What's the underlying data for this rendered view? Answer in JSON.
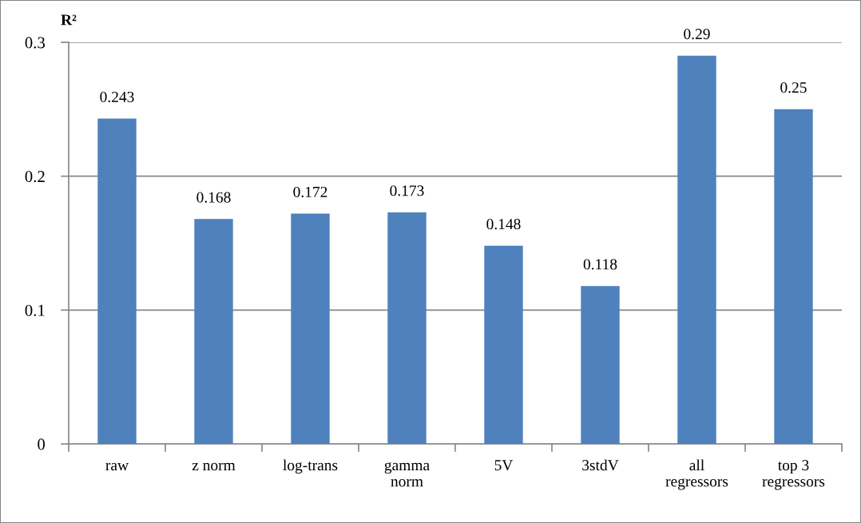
{
  "chart_data": {
    "type": "bar",
    "ylabel": "R²",
    "categories": [
      "raw",
      "z norm",
      "log-trans",
      "gamma\nnorm",
      "5V",
      "3stdV",
      "all\nregressors",
      "top 3\nregressors"
    ],
    "values": [
      0.243,
      0.168,
      0.172,
      0.173,
      0.148,
      0.118,
      0.29,
      0.25
    ],
    "color": "#4f81bd",
    "ylim": [
      0,
      0.3
    ],
    "yticks": [
      0,
      0.1,
      0.2,
      0.3
    ],
    "grid": "y",
    "data_labels": true
  }
}
